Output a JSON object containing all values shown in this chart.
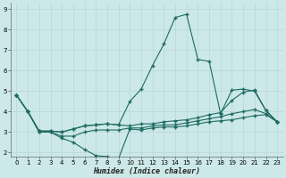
{
  "xlabel": "Humidex (Indice chaleur)",
  "ylabel": "",
  "bg_color": "#cce8e8",
  "grid_color": "#b8d8d8",
  "line_color": "#1e6b60",
  "xlim": [
    -0.5,
    23.5
  ],
  "ylim": [
    1.8,
    9.3
  ],
  "yticks": [
    2,
    3,
    4,
    5,
    6,
    7,
    8,
    9
  ],
  "xticks": [
    0,
    1,
    2,
    3,
    4,
    5,
    6,
    7,
    8,
    9,
    10,
    11,
    12,
    13,
    14,
    15,
    16,
    17,
    18,
    19,
    20,
    21,
    22,
    23
  ],
  "series": [
    {
      "x": [
        0,
        1,
        2,
        3,
        4,
        5,
        6,
        7,
        8,
        9,
        10,
        11,
        12,
        13,
        14,
        15,
        16,
        17,
        18,
        19,
        20,
        21,
        22,
        23
      ],
      "y": [
        4.8,
        4.0,
        3.0,
        3.0,
        2.7,
        2.5,
        2.15,
        1.85,
        1.8,
        1.7,
        3.15,
        3.1,
        3.2,
        3.25,
        3.25,
        3.3,
        3.4,
        3.5,
        3.55,
        3.6,
        3.7,
        3.8,
        3.85,
        3.5
      ]
    },
    {
      "x": [
        0,
        1,
        2,
        3,
        4,
        5,
        6,
        7,
        8,
        9,
        10,
        11,
        12,
        13,
        14,
        15,
        16,
        17,
        18,
        19,
        20,
        21,
        22,
        23
      ],
      "y": [
        4.8,
        4.0,
        3.0,
        3.0,
        2.8,
        2.8,
        3.0,
        3.1,
        3.1,
        3.1,
        3.2,
        3.2,
        3.3,
        3.35,
        3.35,
        3.45,
        3.55,
        3.65,
        3.75,
        3.9,
        4.0,
        4.1,
        3.9,
        3.5
      ]
    },
    {
      "x": [
        0,
        1,
        2,
        3,
        4,
        5,
        6,
        7,
        8,
        9,
        10,
        11,
        12,
        13,
        14,
        15,
        16,
        17,
        18,
        19,
        20,
        21,
        22,
        23
      ],
      "y": [
        4.8,
        4.0,
        3.05,
        3.05,
        3.0,
        3.15,
        3.3,
        3.35,
        3.4,
        3.35,
        3.3,
        3.4,
        3.4,
        3.5,
        3.55,
        3.6,
        3.7,
        3.85,
        3.95,
        4.55,
        4.95,
        5.05,
        4.05,
        3.5
      ]
    },
    {
      "x": [
        0,
        1,
        2,
        3,
        4,
        5,
        6,
        7,
        8,
        9,
        10,
        11,
        12,
        13,
        14,
        15,
        16,
        17,
        18,
        19,
        20,
        21,
        22,
        23
      ],
      "y": [
        4.8,
        4.0,
        3.05,
        3.05,
        3.0,
        3.15,
        3.3,
        3.35,
        3.4,
        3.35,
        4.5,
        5.1,
        6.25,
        7.3,
        8.6,
        8.75,
        6.55,
        6.45,
        3.9,
        5.05,
        5.1,
        5.0,
        4.05,
        3.5
      ]
    }
  ]
}
